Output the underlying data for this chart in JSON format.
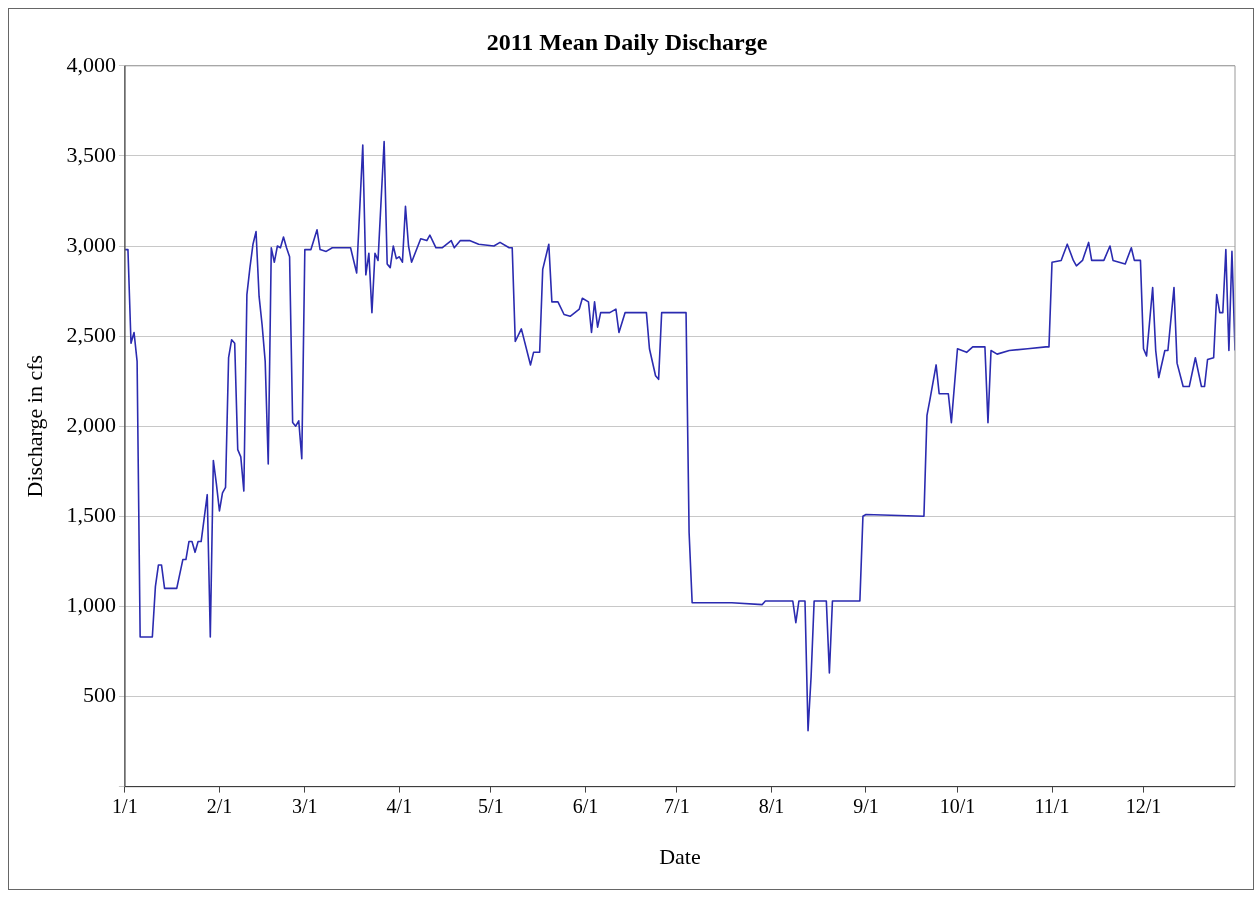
{
  "chart_data": {
    "type": "line",
    "title": "2011 Mean Daily Discharge",
    "xlabel": "Date",
    "ylabel": "Discharge in cfs",
    "xlim": [
      "--01-01",
      "--12-31"
    ],
    "xticks": [
      {
        "value": "--01-01",
        "label": "1/1"
      },
      {
        "value": "--02-01",
        "label": "2/1"
      },
      {
        "value": "--03-01",
        "label": "3/1"
      },
      {
        "value": "--04-01",
        "label": "4/1"
      },
      {
        "value": "--05-01",
        "label": "5/1"
      },
      {
        "value": "--06-01",
        "label": "6/1"
      },
      {
        "value": "--07-01",
        "label": "7/1"
      },
      {
        "value": "--08-01",
        "label": "8/1"
      },
      {
        "value": "--09-01",
        "label": "9/1"
      },
      {
        "value": "--10-01",
        "label": "10/1"
      },
      {
        "value": "--11-01",
        "label": "11/1"
      },
      {
        "value": "--12-01",
        "label": "12/1"
      }
    ],
    "ylim": [
      0,
      4000
    ],
    "yticks": [
      {
        "value": 0,
        "label": null
      },
      500,
      {
        "value": 1000,
        "label": "1,000"
      },
      {
        "value": 1500,
        "label": "1,500"
      },
      {
        "value": 2000,
        "label": "2,000"
      },
      {
        "value": 2500,
        "label": "2,500"
      },
      {
        "value": 3000,
        "label": "3,000"
      },
      {
        "value": 3500,
        "label": "3,500"
      },
      {
        "value": 4000,
        "label": "4,000"
      }
    ],
    "grid": "y",
    "legend": false,
    "line_style": "solid",
    "x": [
      "--01-01",
      "--01-02",
      "--01-03",
      "--01-04",
      "--01-05",
      "--01-06",
      "--01-10",
      "--01-11",
      "--01-12",
      "--01-13",
      "--01-14",
      "--01-18",
      "--01-20",
      "--01-21",
      "--01-22",
      "--01-23",
      "--01-24",
      "--01-25",
      "--01-26",
      "--01-27",
      "--01-28",
      "--01-29",
      "--01-30",
      "--01-31",
      "--02-01",
      "--02-02",
      "--02-03",
      "--02-04",
      "--02-05",
      "--02-06",
      "--02-07",
      "--02-08",
      "--02-09",
      "--02-10",
      "--02-11",
      "--02-12",
      "--02-13",
      "--02-14",
      "--02-15",
      "--02-16",
      "--02-17",
      "--02-18",
      "--02-19",
      "--02-20",
      "--02-21",
      "--02-22",
      "--02-23",
      "--02-24",
      "--02-25",
      "--02-26",
      "--02-27",
      "--02-28",
      "--03-01",
      "--03-03",
      "--03-05",
      "--03-06",
      "--03-08",
      "--03-10",
      "--03-16",
      "--03-18",
      "--03-20",
      "--03-21",
      "--03-22",
      "--03-23",
      "--03-24",
      "--03-25",
      "--03-27",
      "--03-28",
      "--03-29",
      "--03-30",
      "--03-31",
      "--04-01",
      "--04-02",
      "--04-03",
      "--04-04",
      "--04-05",
      "--04-08",
      "--04-10",
      "--04-11",
      "--04-13",
      "--04-15",
      "--04-18",
      "--04-19",
      "--04-21",
      "--04-24",
      "--04-27",
      "--05-02",
      "--05-04",
      "--05-07",
      "--05-08",
      "--05-09",
      "--05-11",
      "--05-14",
      "--05-15",
      "--05-17",
      "--05-18",
      "--05-20",
      "--05-21",
      "--05-23",
      "--05-25",
      "--05-27",
      "--05-30",
      "--05-31",
      "--06-02",
      "--06-03",
      "--06-04",
      "--06-05",
      "--06-06",
      "--06-09",
      "--06-11",
      "--06-12",
      "--06-14",
      "--06-21",
      "--06-22",
      "--06-24",
      "--06-25",
      "--06-26",
      "--07-04",
      "--07-05",
      "--07-06",
      "--07-19",
      "--07-29",
      "--07-30",
      "--08-08",
      "--08-09",
      "--08-10",
      "--08-12",
      "--08-13",
      "--08-14",
      "--08-15",
      "--08-19",
      "--08-20",
      "--08-21",
      "--08-30",
      "--08-31",
      "--09-01",
      "--09-20",
      "--09-21",
      "--09-22",
      "--09-24",
      "--09-25",
      "--09-28",
      "--09-29",
      "--10-01",
      "--10-04",
      "--10-06",
      "--10-10",
      "--10-11",
      "--10-12",
      "--10-14",
      "--10-18",
      "--10-24",
      "--10-30",
      "--10-31",
      "--11-01",
      "--11-04",
      "--11-06",
      "--11-08",
      "--11-09",
      "--11-11",
      "--11-13",
      "--11-14",
      "--11-18",
      "--11-20",
      "--11-21",
      "--11-25",
      "--11-27",
      "--11-28",
      "--11-30",
      "--12-01",
      "--12-02",
      "--12-04",
      "--12-05",
      "--12-06",
      "--12-08",
      "--12-09",
      "--12-11",
      "--12-12",
      "--12-14",
      "--12-16",
      "--12-18",
      "--12-20",
      "--12-21",
      "--12-22",
      "--12-24",
      "--12-25",
      "--12-26",
      "--12-27",
      "--12-28",
      "--12-29",
      "--12-30",
      "--12-31"
    ],
    "series": [
      {
        "color": "#2b2bb0",
        "values": [
          2980,
          2980,
          2460,
          2520,
          2360,
          830,
          830,
          1110,
          1230,
          1230,
          1100,
          1100,
          1260,
          1260,
          1360,
          1360,
          1300,
          1360,
          1360,
          1490,
          1620,
          830,
          1810,
          1680,
          1530,
          1630,
          1660,
          2380,
          2480,
          2460,
          1870,
          1830,
          1640,
          2730,
          2880,
          3010,
          3080,
          2720,
          2560,
          2360,
          1790,
          2990,
          2910,
          3000,
          2990,
          3050,
          2990,
          2940,
          2020,
          2000,
          2030,
          1820,
          2980,
          2980,
          3090,
          2980,
          2970,
          2990,
          2990,
          2850,
          3560,
          2840,
          2960,
          2630,
          2960,
          2920,
          3580,
          2900,
          2880,
          3000,
          2930,
          2940,
          2910,
          3220,
          3000,
          2910,
          3040,
          3030,
          3060,
          2990,
          2990,
          3030,
          2990,
          3030,
          3030,
          3010,
          3000,
          3020,
          2990,
          2990,
          2470,
          2540,
          2340,
          2410,
          2410,
          2870,
          3010,
          2690,
          2690,
          2620,
          2610,
          2650,
          2710,
          2690,
          2520,
          2690,
          2550,
          2630,
          2630,
          2650,
          2520,
          2630,
          2630,
          2430,
          2280,
          2260,
          2630,
          2630,
          1410,
          1020,
          1020,
          1010,
          1030,
          1030,
          910,
          1030,
          1030,
          310,
          610,
          1030,
          1030,
          630,
          1030,
          1030,
          1500,
          1510,
          1500,
          2060,
          2150,
          2340,
          2180,
          2180,
          2020,
          2430,
          2410,
          2440,
          2440,
          2020,
          2420,
          2400,
          2420,
          2430,
          2440,
          2440,
          2910,
          2920,
          3010,
          2920,
          2890,
          2920,
          3020,
          2920,
          2920,
          3000,
          2920,
          2900,
          2990,
          2920,
          2920,
          2430,
          2390,
          2770,
          2420,
          2270,
          2420,
          2420,
          2770,
          2350,
          2220,
          2220,
          2380,
          2220,
          2220,
          2370,
          2380,
          2730,
          2630,
          2630,
          2980,
          2420,
          2970,
          2420
        ]
      }
    ]
  }
}
